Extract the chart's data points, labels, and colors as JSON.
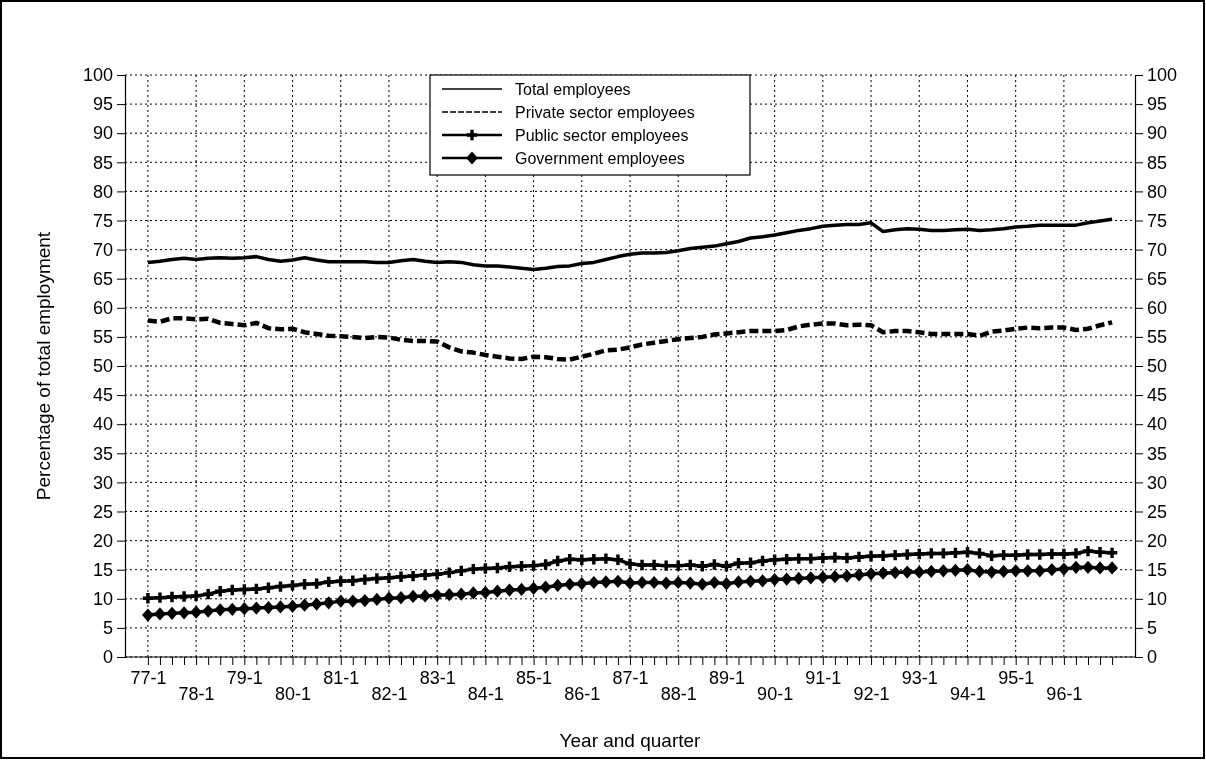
{
  "chart_data": {
    "type": "line",
    "xlabel": "Year and quarter",
    "ylabel": "Percentage of total employment",
    "categories": [
      "77-1",
      null,
      null,
      null,
      "78-1",
      null,
      null,
      null,
      "79-1",
      null,
      null,
      null,
      "80-1",
      null,
      null,
      null,
      "81-1",
      null,
      null,
      null,
      "82-1",
      null,
      null,
      null,
      "83-1",
      null,
      null,
      null,
      "84-1",
      null,
      null,
      null,
      "85-1",
      null,
      null,
      null,
      "86-1",
      null,
      null,
      null,
      "87-1",
      null,
      null,
      null,
      "88-1",
      null,
      null,
      null,
      "89-1",
      null,
      null,
      null,
      "90-1",
      null,
      null,
      null,
      "91-1",
      null,
      null,
      null,
      "92-1",
      null,
      null,
      null,
      "93-1",
      null,
      null,
      null,
      "94-1",
      null,
      null,
      null,
      "95-1",
      null,
      null,
      null,
      "96-1",
      null,
      null,
      null,
      null
    ],
    "ylim": [
      0,
      100
    ],
    "yticks": [
      0,
      5,
      10,
      15,
      20,
      25,
      30,
      35,
      40,
      45,
      50,
      55,
      60,
      65,
      70,
      75,
      80,
      85,
      90,
      95,
      100
    ],
    "y2lim": [
      0,
      100
    ],
    "y2ticks": [
      0,
      5,
      10,
      15,
      20,
      25,
      30,
      35,
      40,
      45,
      50,
      55,
      60,
      65,
      70,
      75,
      80,
      85,
      90,
      95,
      100
    ],
    "grid": true,
    "legend": "top",
    "series": [
      {
        "name": "Total employees",
        "color": "#000000",
        "line_style": "solid",
        "marker": "none",
        "values": [
          67.8,
          68.0,
          68.3,
          68.5,
          68.3,
          68.5,
          68.6,
          68.5,
          68.6,
          68.8,
          68.3,
          68.0,
          68.2,
          68.6,
          68.2,
          67.9,
          67.9,
          67.9,
          67.9,
          67.8,
          67.8,
          68.1,
          68.3,
          68.0,
          67.8,
          67.9,
          67.8,
          67.4,
          67.2,
          67.2,
          67.0,
          66.8,
          66.6,
          66.8,
          67.1,
          67.2,
          67.6,
          67.8,
          68.3,
          68.8,
          69.2,
          69.4,
          69.4,
          69.5,
          69.8,
          70.2,
          70.4,
          70.6,
          71.0,
          71.4,
          72.0,
          72.2,
          72.5,
          72.9,
          73.3,
          73.6,
          74.0,
          74.2,
          74.3,
          74.3,
          74.6,
          73.1,
          73.4,
          73.6,
          73.5,
          73.3,
          73.3,
          73.4,
          73.5,
          73.3,
          73.4,
          73.6,
          73.9,
          74.0,
          74.2,
          74.2,
          74.2,
          74.2,
          74.6,
          74.9,
          75.2
        ]
      },
      {
        "name": "Private sector employees",
        "color": "#000000",
        "line_style": "dashed",
        "marker": "none",
        "values": [
          57.8,
          57.6,
          58.2,
          58.2,
          58.0,
          58.1,
          57.4,
          57.2,
          57.0,
          57.4,
          56.5,
          56.3,
          56.4,
          55.8,
          55.5,
          55.2,
          55.1,
          55.0,
          54.8,
          55.0,
          54.9,
          54.5,
          54.3,
          54.3,
          54.2,
          53.2,
          52.5,
          52.3,
          51.9,
          51.6,
          51.3,
          51.2,
          51.6,
          51.5,
          51.2,
          51.1,
          51.6,
          52.1,
          52.7,
          52.8,
          53.2,
          53.7,
          54.0,
          54.3,
          54.6,
          54.8,
          55.0,
          55.4,
          55.6,
          55.8,
          56.0,
          56.0,
          56.0,
          56.2,
          56.8,
          57.1,
          57.3,
          57.3,
          57.0,
          57.1,
          57.0,
          55.8,
          56.0,
          56.0,
          55.8,
          55.5,
          55.5,
          55.5,
          55.5,
          55.2,
          55.9,
          56.1,
          56.4,
          56.6,
          56.5,
          56.6,
          56.6,
          56.2,
          56.4,
          57.0,
          57.5
        ]
      },
      {
        "name": "Public sector employees",
        "color": "#000000",
        "line_style": "solid",
        "marker": "cross",
        "values": [
          10.1,
          10.2,
          10.3,
          10.4,
          10.5,
          10.8,
          11.3,
          11.5,
          11.6,
          11.7,
          11.9,
          12.1,
          12.3,
          12.5,
          12.6,
          12.9,
          13.0,
          13.1,
          13.3,
          13.5,
          13.6,
          13.8,
          13.9,
          14.1,
          14.2,
          14.5,
          14.8,
          15.1,
          15.2,
          15.3,
          15.5,
          15.6,
          15.7,
          15.9,
          16.5,
          16.8,
          16.7,
          16.8,
          16.9,
          16.7,
          16.0,
          15.8,
          15.8,
          15.7,
          15.7,
          15.8,
          15.6,
          15.9,
          15.6,
          16.1,
          16.2,
          16.5,
          16.7,
          16.8,
          16.9,
          16.9,
          17.0,
          17.1,
          17.0,
          17.2,
          17.3,
          17.4,
          17.5,
          17.6,
          17.7,
          17.8,
          17.8,
          17.9,
          18.0,
          17.8,
          17.4,
          17.5,
          17.5,
          17.6,
          17.6,
          17.7,
          17.7,
          17.8,
          18.2,
          18.0,
          17.9
        ]
      },
      {
        "name": "Government employees",
        "color": "#000000",
        "line_style": "solid",
        "marker": "diamond",
        "values": [
          7.2,
          7.4,
          7.5,
          7.6,
          7.7,
          7.9,
          8.1,
          8.2,
          8.3,
          8.4,
          8.5,
          8.6,
          8.7,
          8.9,
          9.1,
          9.3,
          9.6,
          9.6,
          9.7,
          9.9,
          10.1,
          10.2,
          10.4,
          10.5,
          10.6,
          10.7,
          10.8,
          11.0,
          11.1,
          11.3,
          11.5,
          11.6,
          11.8,
          12.0,
          12.3,
          12.5,
          12.6,
          12.8,
          12.9,
          13.0,
          12.7,
          12.8,
          12.8,
          12.7,
          12.8,
          12.7,
          12.5,
          12.8,
          12.6,
          12.9,
          13.0,
          13.1,
          13.3,
          13.4,
          13.5,
          13.6,
          13.7,
          13.8,
          13.9,
          14.1,
          14.3,
          14.4,
          14.5,
          14.6,
          14.6,
          14.7,
          14.8,
          14.9,
          15.0,
          14.7,
          14.6,
          14.7,
          14.8,
          14.8,
          14.8,
          15.0,
          15.1,
          15.4,
          15.4,
          15.3,
          15.3
        ]
      }
    ]
  }
}
